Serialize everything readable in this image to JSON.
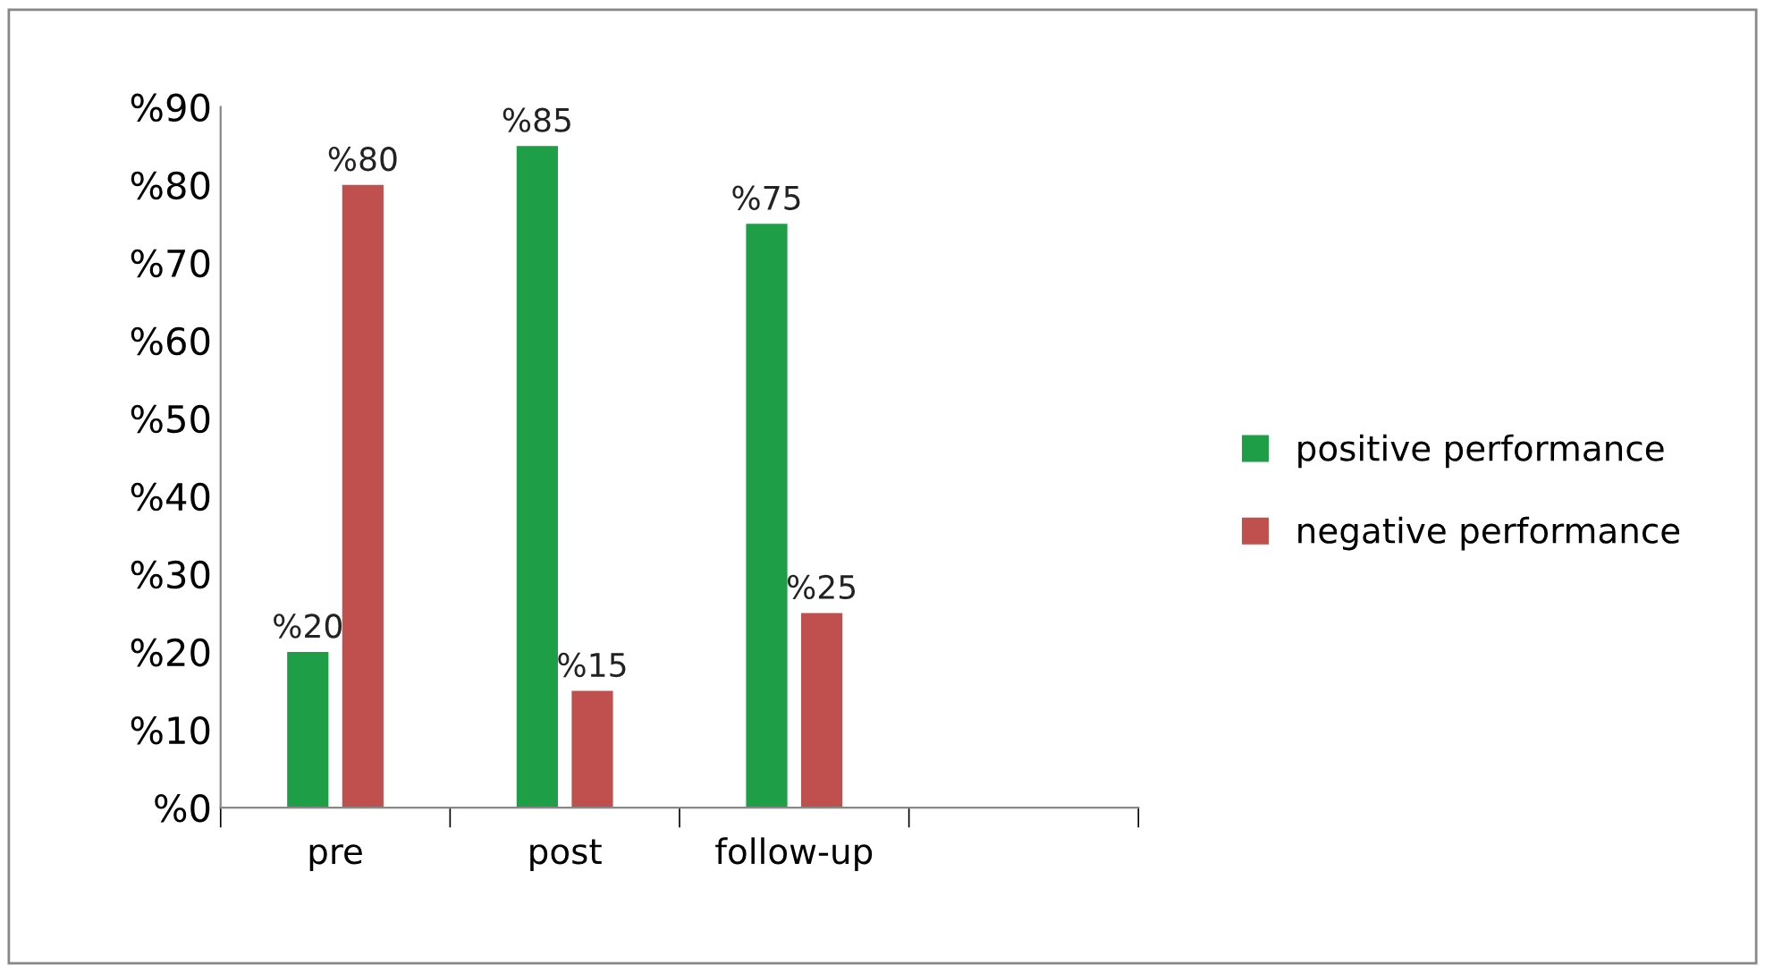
{
  "chart_data": {
    "type": "bar",
    "categories": [
      "pre",
      "post",
      "follow-up",
      null
    ],
    "series": [
      {
        "name": "positive performance",
        "color": "#1e9e46",
        "values": [
          20,
          85,
          75,
          null
        ],
        "value_labels": [
          "%20",
          "%85",
          "%75",
          null
        ]
      },
      {
        "name": "negative performance",
        "color": "#c0504d",
        "values": [
          80,
          15,
          25,
          null
        ],
        "value_labels": [
          "%80",
          "%15",
          "%25",
          null
        ]
      }
    ],
    "ylim": [
      0,
      90
    ],
    "yticks": [
      {
        "value": 0,
        "label": "%0"
      },
      {
        "value": 10,
        "label": "%10"
      },
      {
        "value": 20,
        "label": "%20"
      },
      {
        "value": 30,
        "label": "%30"
      },
      {
        "value": 40,
        "label": "%40"
      },
      {
        "value": 50,
        "label": "%50"
      },
      {
        "value": 60,
        "label": "%60"
      },
      {
        "value": 70,
        "label": "%70"
      },
      {
        "value": 80,
        "label": "%80"
      },
      {
        "value": 90,
        "label": "%90"
      }
    ],
    "grid": false,
    "legend": "right"
  }
}
